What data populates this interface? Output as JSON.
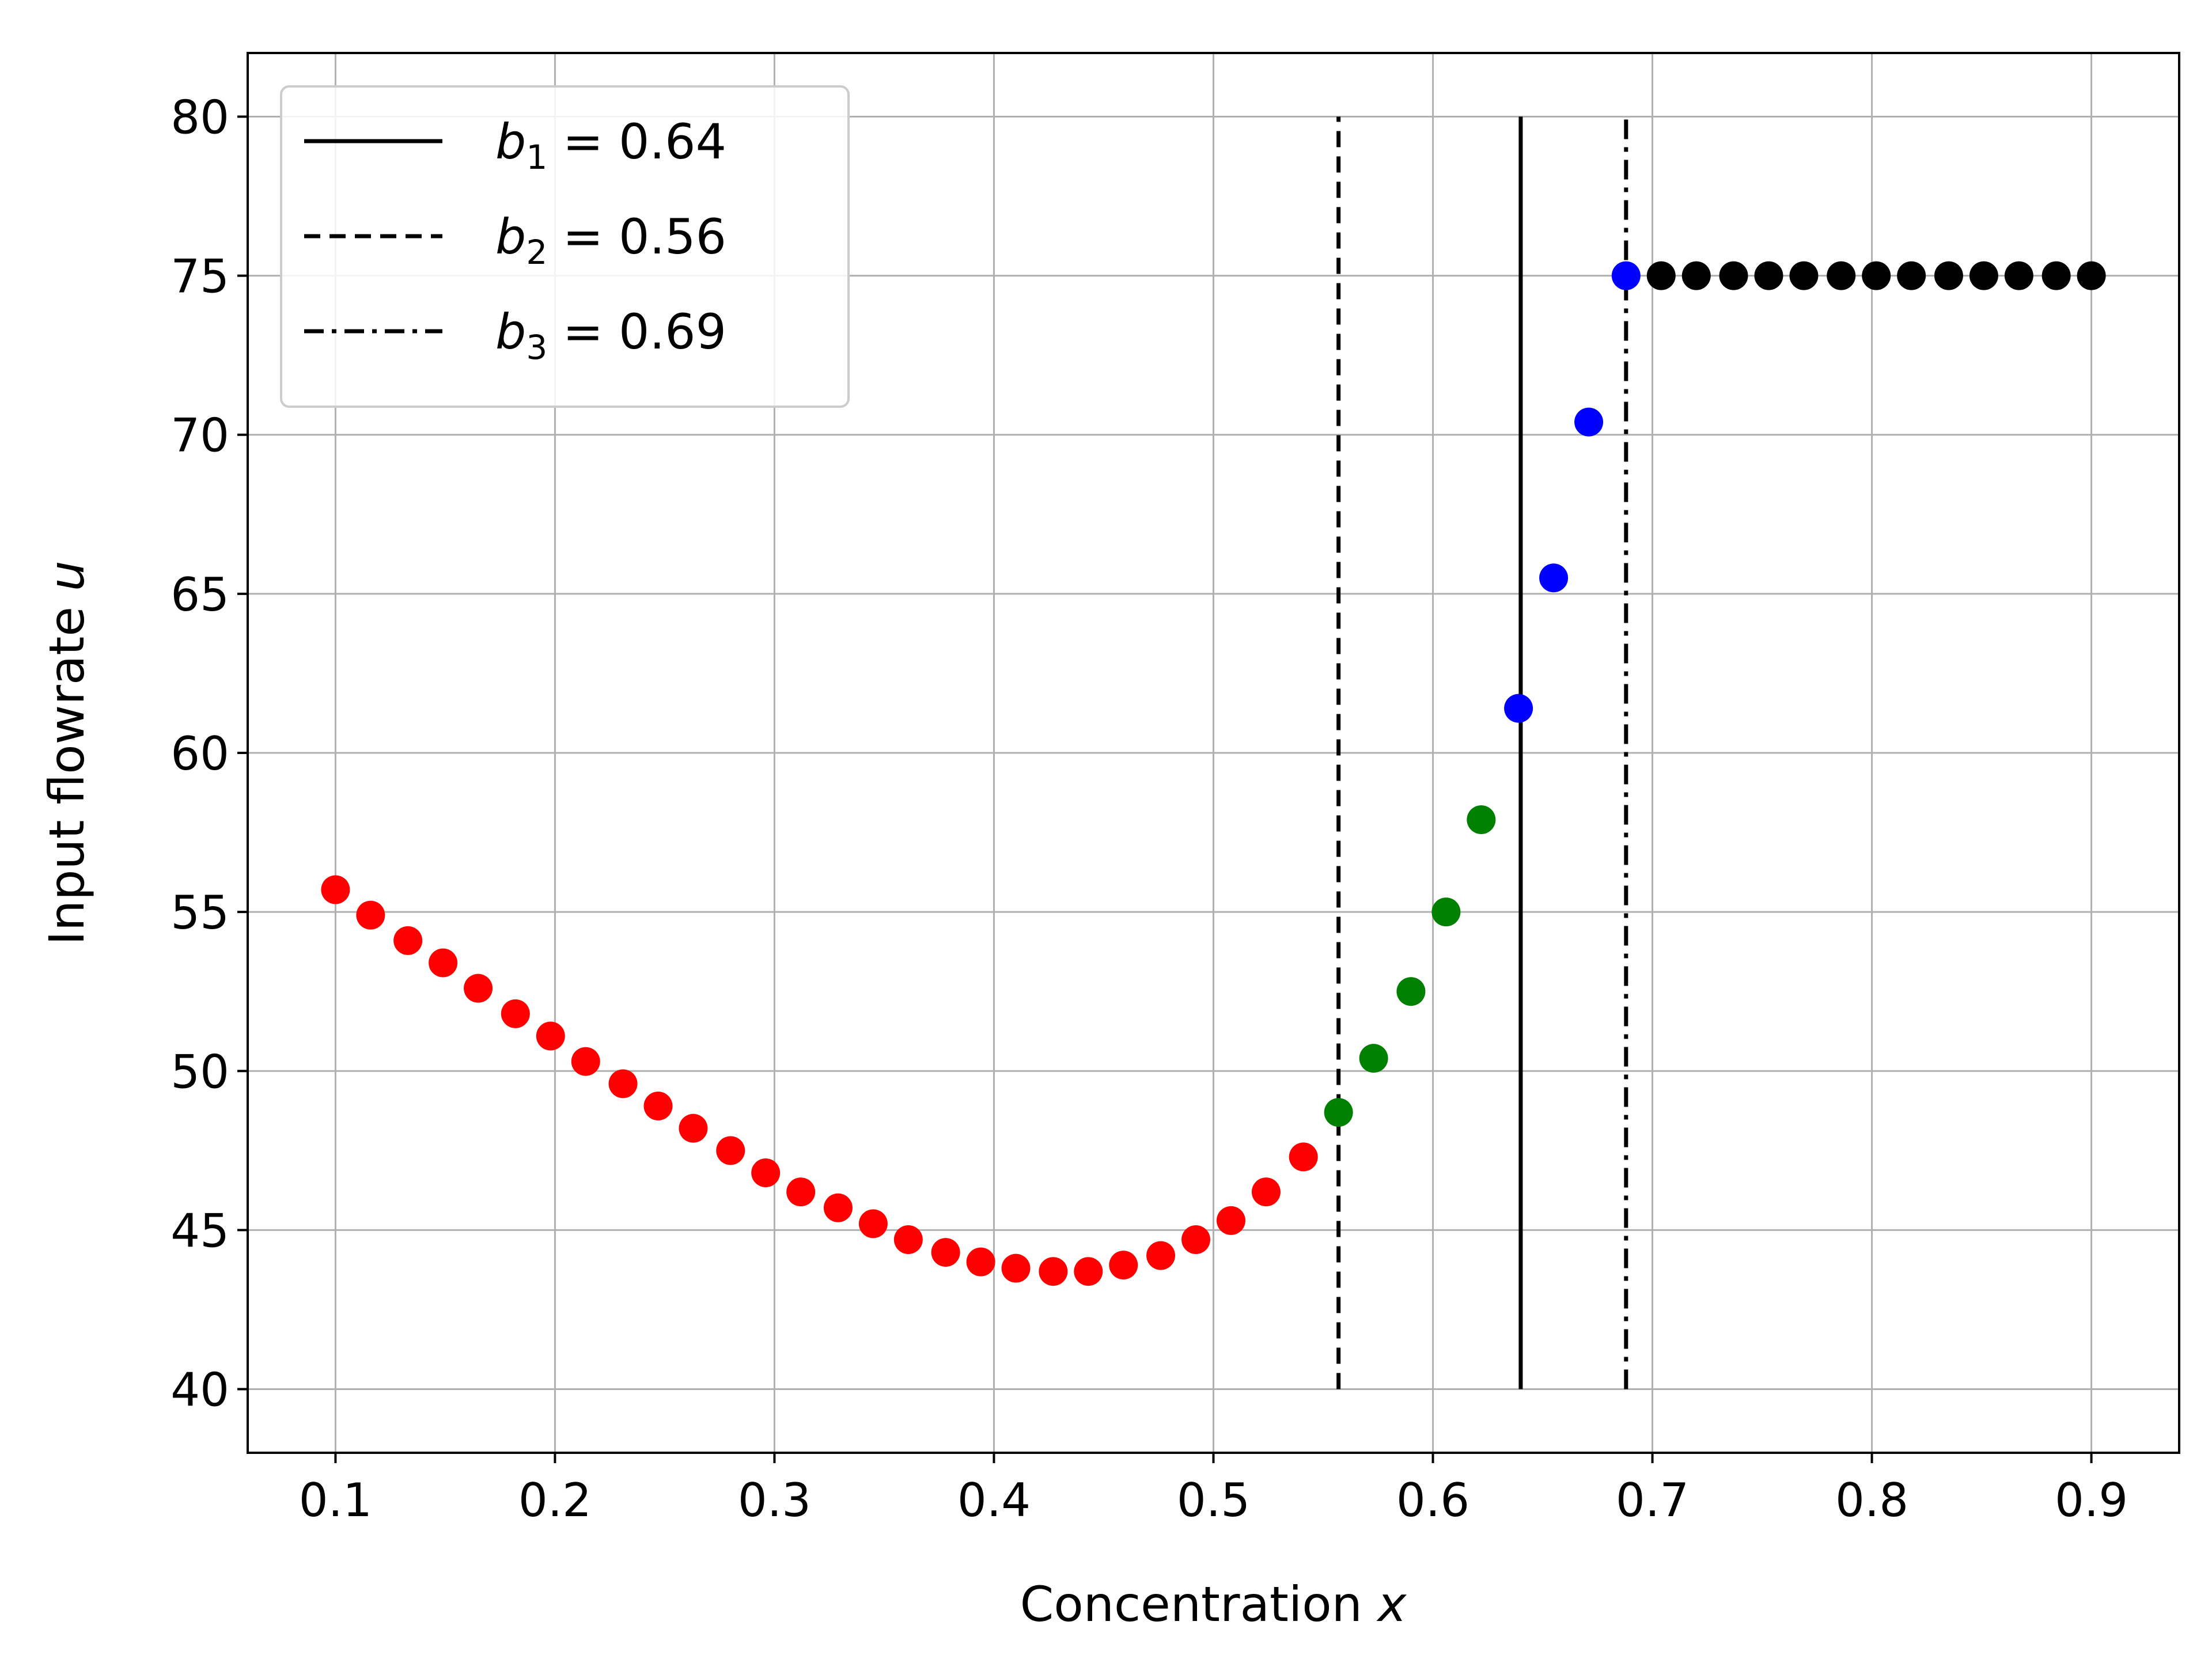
{
  "chart_data": {
    "type": "scatter",
    "xlabel_text": "Concentration ",
    "xlabel_var": "x",
    "ylabel_text": "Input flowrate ",
    "ylabel_var": "u",
    "xlim": [
      0.06,
      0.94
    ],
    "ylim": [
      38,
      82
    ],
    "xticks": [
      0.1,
      0.2,
      0.3,
      0.4,
      0.5,
      0.6,
      0.7,
      0.8,
      0.9
    ],
    "xtick_labels": [
      "0.1",
      "0.2",
      "0.3",
      "0.4",
      "0.5",
      "0.6",
      "0.7",
      "0.8",
      "0.9"
    ],
    "yticks": [
      40,
      45,
      50,
      55,
      60,
      65,
      70,
      75,
      80
    ],
    "ytick_labels": [
      "40",
      "45",
      "50",
      "55",
      "60",
      "65",
      "70",
      "75",
      "80"
    ],
    "grid": true,
    "legend_position": "top-left",
    "series": [
      {
        "color": "#ff0000",
        "marker": "circle",
        "x": [
          0.1,
          0.116,
          0.133,
          0.149,
          0.165,
          0.182,
          0.198,
          0.214,
          0.231,
          0.247,
          0.263,
          0.28,
          0.296,
          0.312,
          0.329,
          0.345,
          0.361,
          0.378,
          0.394,
          0.41,
          0.427,
          0.443,
          0.459,
          0.476,
          0.492,
          0.508,
          0.524,
          0.541
        ],
        "y": [
          55.7,
          54.9,
          54.1,
          53.4,
          52.6,
          51.8,
          51.1,
          50.3,
          49.6,
          48.9,
          48.2,
          47.5,
          46.8,
          46.2,
          45.7,
          45.2,
          44.7,
          44.3,
          44.0,
          43.8,
          43.7,
          43.7,
          43.9,
          44.2,
          44.7,
          45.3,
          46.2,
          47.3
        ]
      },
      {
        "color": "#008000",
        "marker": "circle",
        "x": [
          0.557,
          0.573,
          0.59,
          0.606,
          0.622
        ],
        "y": [
          48.7,
          50.4,
          52.5,
          55.0,
          57.9
        ]
      },
      {
        "color": "#0000ff",
        "marker": "circle",
        "x": [
          0.639,
          0.655,
          0.671,
          0.688
        ],
        "y": [
          61.4,
          65.5,
          70.4,
          75.0
        ]
      },
      {
        "color": "#000000",
        "marker": "circle",
        "x": [
          0.704,
          0.72,
          0.737,
          0.753,
          0.769,
          0.786,
          0.802,
          0.818,
          0.835,
          0.851,
          0.867,
          0.884,
          0.9
        ],
        "y": [
          75,
          75,
          75,
          75,
          75,
          75,
          75,
          75,
          75,
          75,
          75,
          75,
          75
        ]
      }
    ],
    "vlines": [
      {
        "var": "b",
        "sub": "1",
        "label_value": " = 0.64",
        "x": 0.64,
        "style": "solid",
        "ymin": 40,
        "ymax": 80
      },
      {
        "var": "b",
        "sub": "2",
        "label_value": " = 0.56",
        "x": 0.557,
        "style": "dashed",
        "ymin": 40,
        "ymax": 80
      },
      {
        "var": "b",
        "sub": "3",
        "label_value": " = 0.69",
        "x": 0.688,
        "style": "dashdot",
        "ymin": 40,
        "ymax": 80
      }
    ]
  }
}
